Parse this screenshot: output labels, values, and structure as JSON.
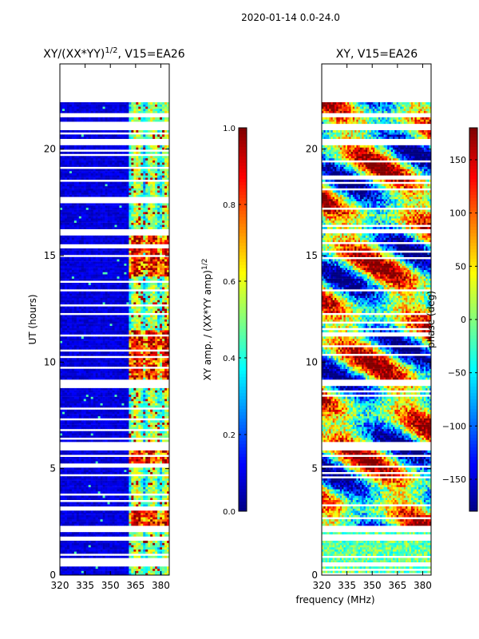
{
  "suptitle": "2020-01-14 0.0-24.0",
  "xlabel_common": "frequency (MHz)",
  "chart_data": [
    {
      "type": "heatmap",
      "title": "XY/(XX*YY)^1/2, V15=EA26",
      "title_main": "XY/(XX*YY)",
      "title_exp": "1/2",
      "title_suffix": ", V15=EA26",
      "xlabel": "frequency (MHz)",
      "ylabel": "UT (hours)",
      "xlim": [
        320,
        385
      ],
      "ylim": [
        0,
        24
      ],
      "xticks": [
        320,
        335,
        350,
        365,
        380
      ],
      "yticks": [
        0,
        5,
        10,
        15,
        20
      ],
      "data_top_hours": 22.2,
      "gap_hours": [
        [
          0.4,
          0.6
        ],
        [
          1.6,
          1.8
        ],
        [
          2.0,
          2.3
        ],
        [
          5.9,
          6.3
        ],
        [
          8.9,
          9.2
        ],
        [
          16.0,
          16.2
        ],
        [
          20.2,
          20.5
        ],
        [
          20.9,
          21.2
        ],
        [
          21.5,
          21.7
        ]
      ],
      "colorbar": {
        "label": "XY amp. / (XX*YY amp)^1/2",
        "label_main": "XY amp. / (XX*YY amp)",
        "label_exp": "1/2",
        "min": 0.0,
        "max": 1.0,
        "ticks": [
          "0.0",
          "0.2",
          "0.4",
          "0.6",
          "0.8",
          "1.0"
        ]
      }
    },
    {
      "type": "heatmap",
      "title": "XY, V15=EA26",
      "xlabel": "frequency (MHz)",
      "ylabel": "",
      "xlim": [
        320,
        385
      ],
      "ylim": [
        0,
        24
      ],
      "xticks": [
        320,
        335,
        350,
        365,
        380
      ],
      "yticks": [
        0,
        5,
        10,
        15,
        20
      ],
      "data_top_hours": 22.2,
      "gap_hours": [
        [
          0.4,
          0.6
        ],
        [
          1.6,
          1.8
        ],
        [
          2.0,
          2.3
        ],
        [
          5.9,
          6.3
        ],
        [
          8.9,
          9.2
        ],
        [
          16.0,
          16.2
        ],
        [
          20.2,
          20.5
        ],
        [
          20.9,
          21.2
        ],
        [
          21.5,
          21.7
        ]
      ],
      "colorbar": {
        "label": "phase (deg)",
        "min": -180,
        "max": 180,
        "ticks": [
          "150",
          "100",
          "50",
          "0",
          "−50",
          "−100",
          "−150"
        ],
        "tick_values": [
          150,
          100,
          50,
          0,
          -50,
          -100,
          -150
        ]
      }
    }
  ]
}
